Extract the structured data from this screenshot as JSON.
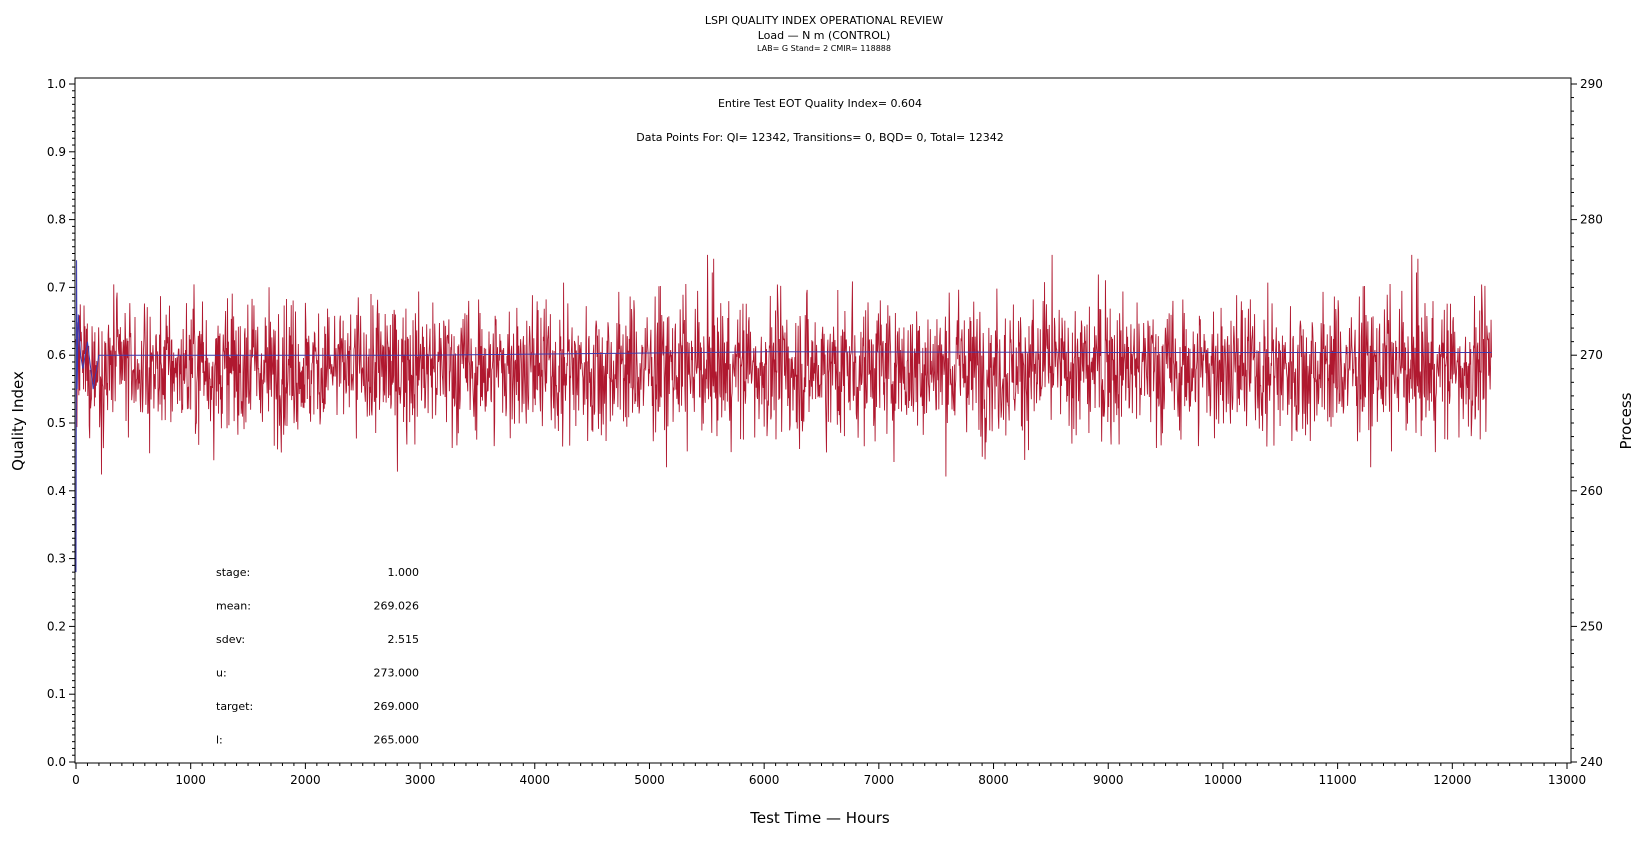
{
  "chart_data": {
    "type": "line",
    "title": "LSPI QUALITY INDEX OPERATIONAL REVIEW",
    "subtitle": "Load — N m (CONTROL)",
    "subtitle2": "LAB= G Stand= 2 CMIR= 118888",
    "xlabel": "Test Time — Hours",
    "ylabel": "Quality Index",
    "y2label": "Process",
    "xlim": [
      0,
      13000
    ],
    "ylim": [
      0,
      1.0
    ],
    "y2lim": [
      240,
      290
    ],
    "xticks": [
      "0",
      "1000",
      "2000",
      "3000",
      "4000",
      "5000",
      "6000",
      "7000",
      "8000",
      "9000",
      "10000",
      "11000",
      "12000",
      "13000"
    ],
    "yticks": [
      "0.0",
      "0.1",
      "0.2",
      "0.3",
      "0.4",
      "0.5",
      "0.6",
      "0.7",
      "0.8",
      "0.9",
      "1.0"
    ],
    "y2ticks": [
      "240",
      "250",
      "260",
      "270",
      "280",
      "290"
    ],
    "annotations": {
      "eot": "Entire Test EOT Quality Index=   0.604",
      "points": "Data Points For: QI= 12342, Transitions=     0, BQD=     0, Total= 12342"
    },
    "stats": [
      {
        "label": "stage:",
        "value": "1.000"
      },
      {
        "label": "mean:",
        "value": "269.026"
      },
      {
        "label": "sdev:",
        "value": "2.515"
      },
      {
        "label": "u:",
        "value": "273.000"
      },
      {
        "label": "target:",
        "value": "269.000"
      },
      {
        "label": "l:",
        "value": "265.000"
      }
    ],
    "series": [
      {
        "axis": "right",
        "color": "#b0182f",
        "n_points": 12342,
        "x_range": [
          0,
          12342
        ],
        "mean": 269.026,
        "sdev": 2.515,
        "min": 257.8,
        "max": 277.4
      },
      {
        "axis": "left",
        "color": "#3b3bb0",
        "x": [
          0,
          5,
          10,
          20,
          40,
          60,
          100,
          150,
          200,
          300,
          1000,
          3000,
          6000,
          9000,
          12342
        ],
        "y": [
          0.28,
          0.74,
          0.55,
          0.66,
          0.6,
          0.58,
          0.62,
          0.55,
          0.6,
          0.6,
          0.6,
          0.6,
          0.605,
          0.604,
          0.604
        ]
      }
    ],
    "grid": false,
    "legend": "none"
  }
}
